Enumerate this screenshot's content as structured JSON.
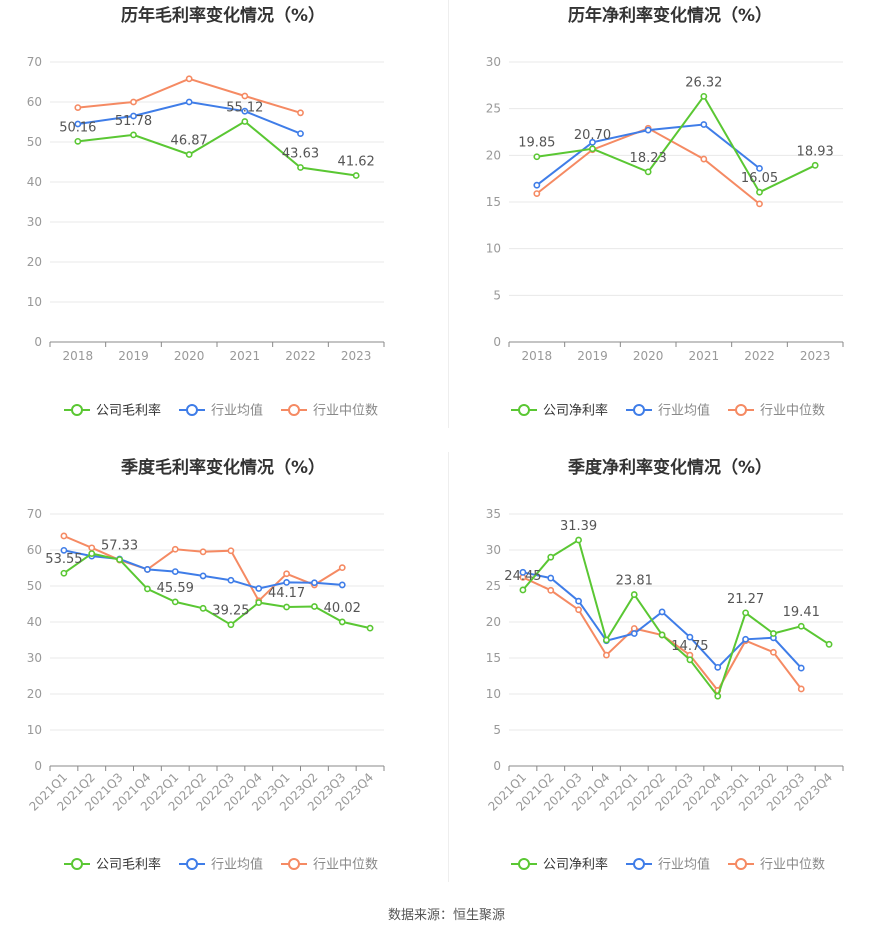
{
  "footer": {
    "source": "数据来源：恒生聚源"
  },
  "colors": {
    "company": "#5ac733",
    "industry_avg": "#3f7de8",
    "industry_median": "#f58a63",
    "grid": "#e8e8e8",
    "axis": "#999999",
    "label": "#555555"
  },
  "chart_data": [
    {
      "id": "annual-gross",
      "type": "line",
      "title": "历年毛利率变化情况（%）",
      "categories": [
        "2018",
        "2019",
        "2020",
        "2021",
        "2022",
        "2023"
      ],
      "ylim": [
        0,
        70
      ],
      "yticks": [
        0,
        10,
        20,
        30,
        40,
        50,
        60,
        70
      ],
      "grid": true,
      "legend_position": "bottom",
      "series": [
        {
          "name": "公司毛利率",
          "key": "company",
          "values": [
            50.16,
            51.78,
            46.87,
            55.12,
            43.63,
            41.62
          ],
          "labels": [
            "50.16",
            "51.78",
            "46.87",
            "55.12",
            "43.63",
            "41.62"
          ]
        },
        {
          "name": "行业均值",
          "key": "industry_avg",
          "values": [
            54.5,
            56.5,
            60.0,
            57.7,
            52.1,
            null
          ]
        },
        {
          "name": "行业中位数",
          "key": "industry_median",
          "values": [
            58.6,
            60.0,
            65.8,
            61.5,
            57.3,
            null
          ]
        }
      ]
    },
    {
      "id": "annual-net",
      "type": "line",
      "title": "历年净利率变化情况（%）",
      "categories": [
        "2018",
        "2019",
        "2020",
        "2021",
        "2022",
        "2023"
      ],
      "ylim": [
        0,
        30
      ],
      "yticks": [
        0,
        5,
        10,
        15,
        20,
        25,
        30
      ],
      "grid": true,
      "legend_position": "bottom",
      "series": [
        {
          "name": "公司净利率",
          "key": "company",
          "values": [
            19.85,
            20.7,
            18.23,
            26.32,
            16.05,
            18.93
          ],
          "labels": [
            "19.85",
            "20.70",
            "18.23",
            "26.32",
            "16.05",
            "18.93"
          ]
        },
        {
          "name": "行业均值",
          "key": "industry_avg",
          "values": [
            16.8,
            21.4,
            22.7,
            23.3,
            18.6,
            null
          ]
        },
        {
          "name": "行业中位数",
          "key": "industry_median",
          "values": [
            15.9,
            20.6,
            22.9,
            19.6,
            14.8,
            null
          ]
        }
      ]
    },
    {
      "id": "quarterly-gross",
      "type": "line",
      "title": "季度毛利率变化情况（%）",
      "categories": [
        "2021Q1",
        "2021Q2",
        "2021Q3",
        "2021Q4",
        "2022Q1",
        "2022Q2",
        "2022Q3",
        "2022Q4",
        "2023Q1",
        "2023Q2",
        "2023Q3",
        "2023Q4"
      ],
      "ylim": [
        0,
        70
      ],
      "yticks": [
        0,
        10,
        20,
        30,
        40,
        50,
        60,
        70
      ],
      "grid": true,
      "legend_position": "bottom",
      "series": [
        {
          "name": "公司毛利率",
          "key": "company",
          "values": [
            53.55,
            59.0,
            57.33,
            49.2,
            45.59,
            43.8,
            39.25,
            45.4,
            44.17,
            44.3,
            40.02,
            38.3
          ],
          "labels": [
            "53.55",
            null,
            "57.33",
            null,
            "45.59",
            null,
            "39.25",
            null,
            "44.17",
            null,
            "40.02",
            null
          ]
        },
        {
          "name": "行业均值",
          "key": "industry_avg",
          "values": [
            59.9,
            58.3,
            57.5,
            54.6,
            54.0,
            52.8,
            51.6,
            49.3,
            51.0,
            50.9,
            50.3,
            null
          ]
        },
        {
          "name": "行业中位数",
          "key": "industry_median",
          "values": [
            63.9,
            60.6,
            57.2,
            54.6,
            60.2,
            59.5,
            59.8,
            45.9,
            53.4,
            50.3,
            55.1,
            null
          ]
        }
      ]
    },
    {
      "id": "quarterly-net",
      "type": "line",
      "title": "季度净利率变化情况（%）",
      "categories": [
        "2021Q1",
        "2021Q2",
        "2021Q3",
        "2021Q4",
        "2022Q1",
        "2022Q2",
        "2022Q3",
        "2022Q4",
        "2023Q1",
        "2023Q2",
        "2023Q3",
        "2023Q4"
      ],
      "ylim": [
        0,
        35
      ],
      "yticks": [
        0,
        5,
        10,
        15,
        20,
        25,
        30,
        35
      ],
      "grid": true,
      "legend_position": "bottom",
      "series": [
        {
          "name": "公司净利率",
          "key": "company",
          "values": [
            24.45,
            29.0,
            31.39,
            17.5,
            23.81,
            18.2,
            14.75,
            9.7,
            21.27,
            18.4,
            19.41,
            16.9
          ],
          "labels": [
            "24.45",
            null,
            "31.39",
            null,
            "23.81",
            null,
            "14.75",
            null,
            "21.27",
            null,
            "19.41",
            null
          ]
        },
        {
          "name": "行业均值",
          "key": "industry_avg",
          "values": [
            26.9,
            26.1,
            22.9,
            17.4,
            18.4,
            21.4,
            17.9,
            13.7,
            17.6,
            17.8,
            13.6,
            null
          ]
        },
        {
          "name": "行业中位数",
          "key": "industry_median",
          "values": [
            26.2,
            24.4,
            21.7,
            15.4,
            19.1,
            18.2,
            15.4,
            10.5,
            17.4,
            15.8,
            10.7,
            null
          ]
        }
      ]
    }
  ]
}
